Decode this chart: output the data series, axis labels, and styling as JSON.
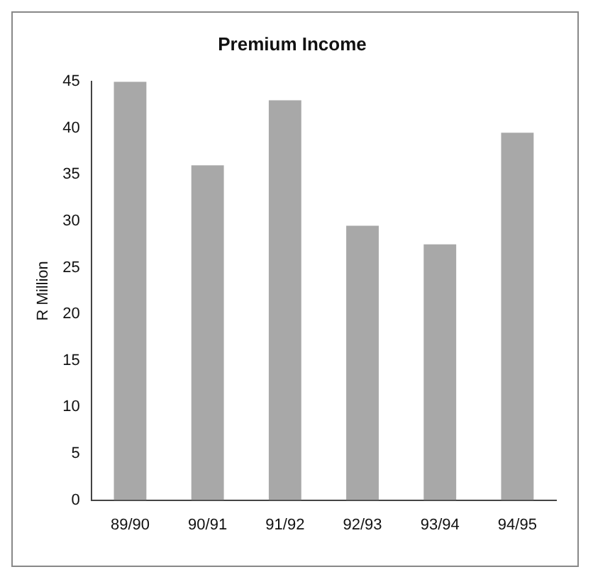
{
  "chart_data": {
    "type": "bar",
    "title": "Premium Income",
    "ylabel": "R Million",
    "categories": [
      "89/90",
      "90/91",
      "91/92",
      "92/93",
      "93/94",
      "94/95"
    ],
    "values": [
      45,
      36,
      43,
      29.5,
      27.5,
      39.5
    ],
    "color": "#a8a8a8",
    "ylim": [
      0,
      45
    ],
    "yticks": [
      0,
      5,
      10,
      15,
      20,
      25,
      30,
      35,
      40,
      45
    ],
    "grid": false,
    "legend": false
  }
}
